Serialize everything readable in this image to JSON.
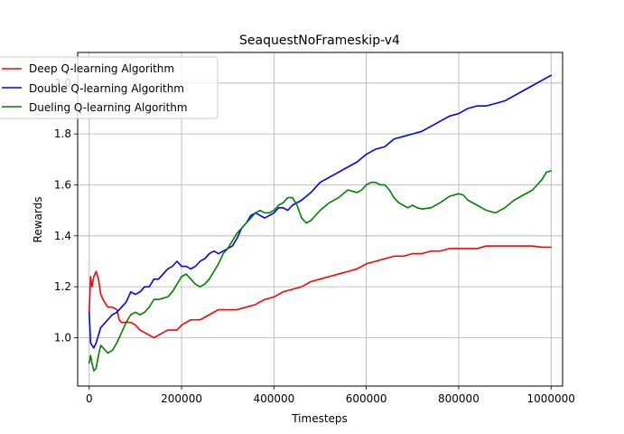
{
  "chart_data": {
    "type": "line",
    "title": "SeaquestNoFrameskip-v4",
    "xlabel": "Timesteps",
    "ylabel": "Rewards",
    "xlim": [
      -25000,
      1025000
    ],
    "ylim": [
      0.81,
      2.12
    ],
    "xticks": [
      0,
      200000,
      400000,
      600000,
      800000,
      1000000
    ],
    "xtick_labels": [
      "0",
      "200000",
      "400000",
      "600000",
      "800000",
      "1000000"
    ],
    "yticks": [
      1.0,
      1.2,
      1.4,
      1.6,
      1.8,
      2.0
    ],
    "ytick_labels": [
      "1.0",
      "1.2",
      "1.4",
      "1.6",
      "1.8",
      "2.0"
    ],
    "grid": true,
    "legend_position": "upper-left",
    "series": [
      {
        "name": "Deep Q-learning Algorithm",
        "color": "#ff0000",
        "x": [
          0,
          3000,
          6000,
          10000,
          15000,
          20000,
          25000,
          30000,
          40000,
          50000,
          60000,
          65000,
          70000,
          80000,
          90000,
          100000,
          110000,
          120000,
          130000,
          140000,
          150000,
          160000,
          170000,
          180000,
          190000,
          200000,
          210000,
          220000,
          240000,
          260000,
          280000,
          290000,
          300000,
          320000,
          340000,
          360000,
          380000,
          400000,
          420000,
          440000,
          460000,
          470000,
          480000,
          500000,
          520000,
          540000,
          560000,
          580000,
          600000,
          620000,
          640000,
          660000,
          680000,
          700000,
          720000,
          740000,
          760000,
          780000,
          800000,
          820000,
          840000,
          860000,
          880000,
          900000,
          920000,
          940000,
          960000,
          980000,
          1000000
        ],
        "y": [
          1.1,
          1.24,
          1.2,
          1.24,
          1.26,
          1.23,
          1.17,
          1.15,
          1.12,
          1.12,
          1.11,
          1.07,
          1.06,
          1.06,
          1.06,
          1.05,
          1.03,
          1.02,
          1.01,
          1.0,
          1.01,
          1.02,
          1.03,
          1.03,
          1.03,
          1.05,
          1.06,
          1.07,
          1.07,
          1.09,
          1.11,
          1.11,
          1.11,
          1.11,
          1.12,
          1.13,
          1.15,
          1.16,
          1.18,
          1.19,
          1.2,
          1.21,
          1.22,
          1.23,
          1.24,
          1.25,
          1.26,
          1.27,
          1.29,
          1.3,
          1.31,
          1.32,
          1.32,
          1.33,
          1.33,
          1.34,
          1.34,
          1.35,
          1.35,
          1.35,
          1.35,
          1.36,
          1.36,
          1.36,
          1.36,
          1.36,
          1.36,
          1.355,
          1.355
        ]
      },
      {
        "name": "Double Q-learning Algorithm",
        "color": "#0000ff",
        "x": [
          0,
          3000,
          6000,
          10000,
          15000,
          20000,
          25000,
          30000,
          40000,
          50000,
          60000,
          70000,
          80000,
          90000,
          100000,
          110000,
          120000,
          130000,
          140000,
          150000,
          160000,
          170000,
          180000,
          190000,
          200000,
          210000,
          220000,
          230000,
          240000,
          250000,
          260000,
          270000,
          280000,
          290000,
          300000,
          310000,
          320000,
          330000,
          340000,
          350000,
          360000,
          370000,
          380000,
          390000,
          400000,
          410000,
          420000,
          430000,
          440000,
          460000,
          480000,
          500000,
          520000,
          540000,
          560000,
          580000,
          600000,
          620000,
          640000,
          660000,
          680000,
          700000,
          720000,
          740000,
          760000,
          780000,
          800000,
          820000,
          840000,
          860000,
          880000,
          900000,
          920000,
          940000,
          960000,
          980000,
          1000000
        ],
        "y": [
          1.1,
          0.98,
          0.97,
          0.96,
          0.98,
          1.01,
          1.04,
          1.05,
          1.07,
          1.09,
          1.1,
          1.12,
          1.14,
          1.18,
          1.17,
          1.18,
          1.2,
          1.2,
          1.23,
          1.23,
          1.25,
          1.27,
          1.28,
          1.3,
          1.28,
          1.28,
          1.27,
          1.28,
          1.3,
          1.31,
          1.33,
          1.34,
          1.33,
          1.34,
          1.35,
          1.36,
          1.39,
          1.43,
          1.45,
          1.48,
          1.49,
          1.48,
          1.47,
          1.48,
          1.49,
          1.51,
          1.51,
          1.5,
          1.52,
          1.54,
          1.57,
          1.61,
          1.63,
          1.65,
          1.67,
          1.69,
          1.72,
          1.74,
          1.75,
          1.78,
          1.79,
          1.8,
          1.81,
          1.83,
          1.85,
          1.87,
          1.88,
          1.9,
          1.91,
          1.91,
          1.92,
          1.93,
          1.95,
          1.97,
          1.99,
          2.01,
          2.03
        ]
      },
      {
        "name": "Dueling Q-learning Algorithm",
        "color": "#008000",
        "x": [
          0,
          3000,
          6000,
          10000,
          15000,
          20000,
          25000,
          30000,
          40000,
          50000,
          60000,
          70000,
          80000,
          90000,
          100000,
          110000,
          120000,
          130000,
          140000,
          150000,
          160000,
          170000,
          180000,
          190000,
          200000,
          210000,
          220000,
          230000,
          240000,
          250000,
          260000,
          270000,
          280000,
          290000,
          300000,
          310000,
          320000,
          330000,
          340000,
          350000,
          360000,
          370000,
          380000,
          390000,
          400000,
          410000,
          420000,
          430000,
          440000,
          450000,
          460000,
          470000,
          480000,
          490000,
          500000,
          520000,
          540000,
          560000,
          580000,
          590000,
          600000,
          610000,
          620000,
          630000,
          640000,
          650000,
          660000,
          670000,
          680000,
          690000,
          700000,
          710000,
          720000,
          740000,
          760000,
          780000,
          800000,
          810000,
          820000,
          840000,
          860000,
          880000,
          900000,
          920000,
          940000,
          960000,
          980000,
          990000,
          1000000
        ],
        "y": [
          0.9,
          0.93,
          0.9,
          0.87,
          0.88,
          0.93,
          0.97,
          0.96,
          0.94,
          0.95,
          0.98,
          1.02,
          1.06,
          1.09,
          1.1,
          1.09,
          1.1,
          1.12,
          1.15,
          1.15,
          1.155,
          1.16,
          1.18,
          1.21,
          1.24,
          1.25,
          1.23,
          1.21,
          1.2,
          1.21,
          1.23,
          1.26,
          1.29,
          1.33,
          1.35,
          1.38,
          1.41,
          1.43,
          1.45,
          1.47,
          1.49,
          1.5,
          1.49,
          1.49,
          1.5,
          1.52,
          1.53,
          1.55,
          1.55,
          1.52,
          1.47,
          1.45,
          1.46,
          1.48,
          1.5,
          1.53,
          1.55,
          1.58,
          1.57,
          1.58,
          1.6,
          1.61,
          1.61,
          1.6,
          1.6,
          1.58,
          1.55,
          1.53,
          1.52,
          1.51,
          1.52,
          1.51,
          1.505,
          1.51,
          1.53,
          1.555,
          1.565,
          1.56,
          1.54,
          1.52,
          1.5,
          1.49,
          1.51,
          1.54,
          1.56,
          1.58,
          1.62,
          1.65,
          1.655
        ]
      }
    ]
  }
}
